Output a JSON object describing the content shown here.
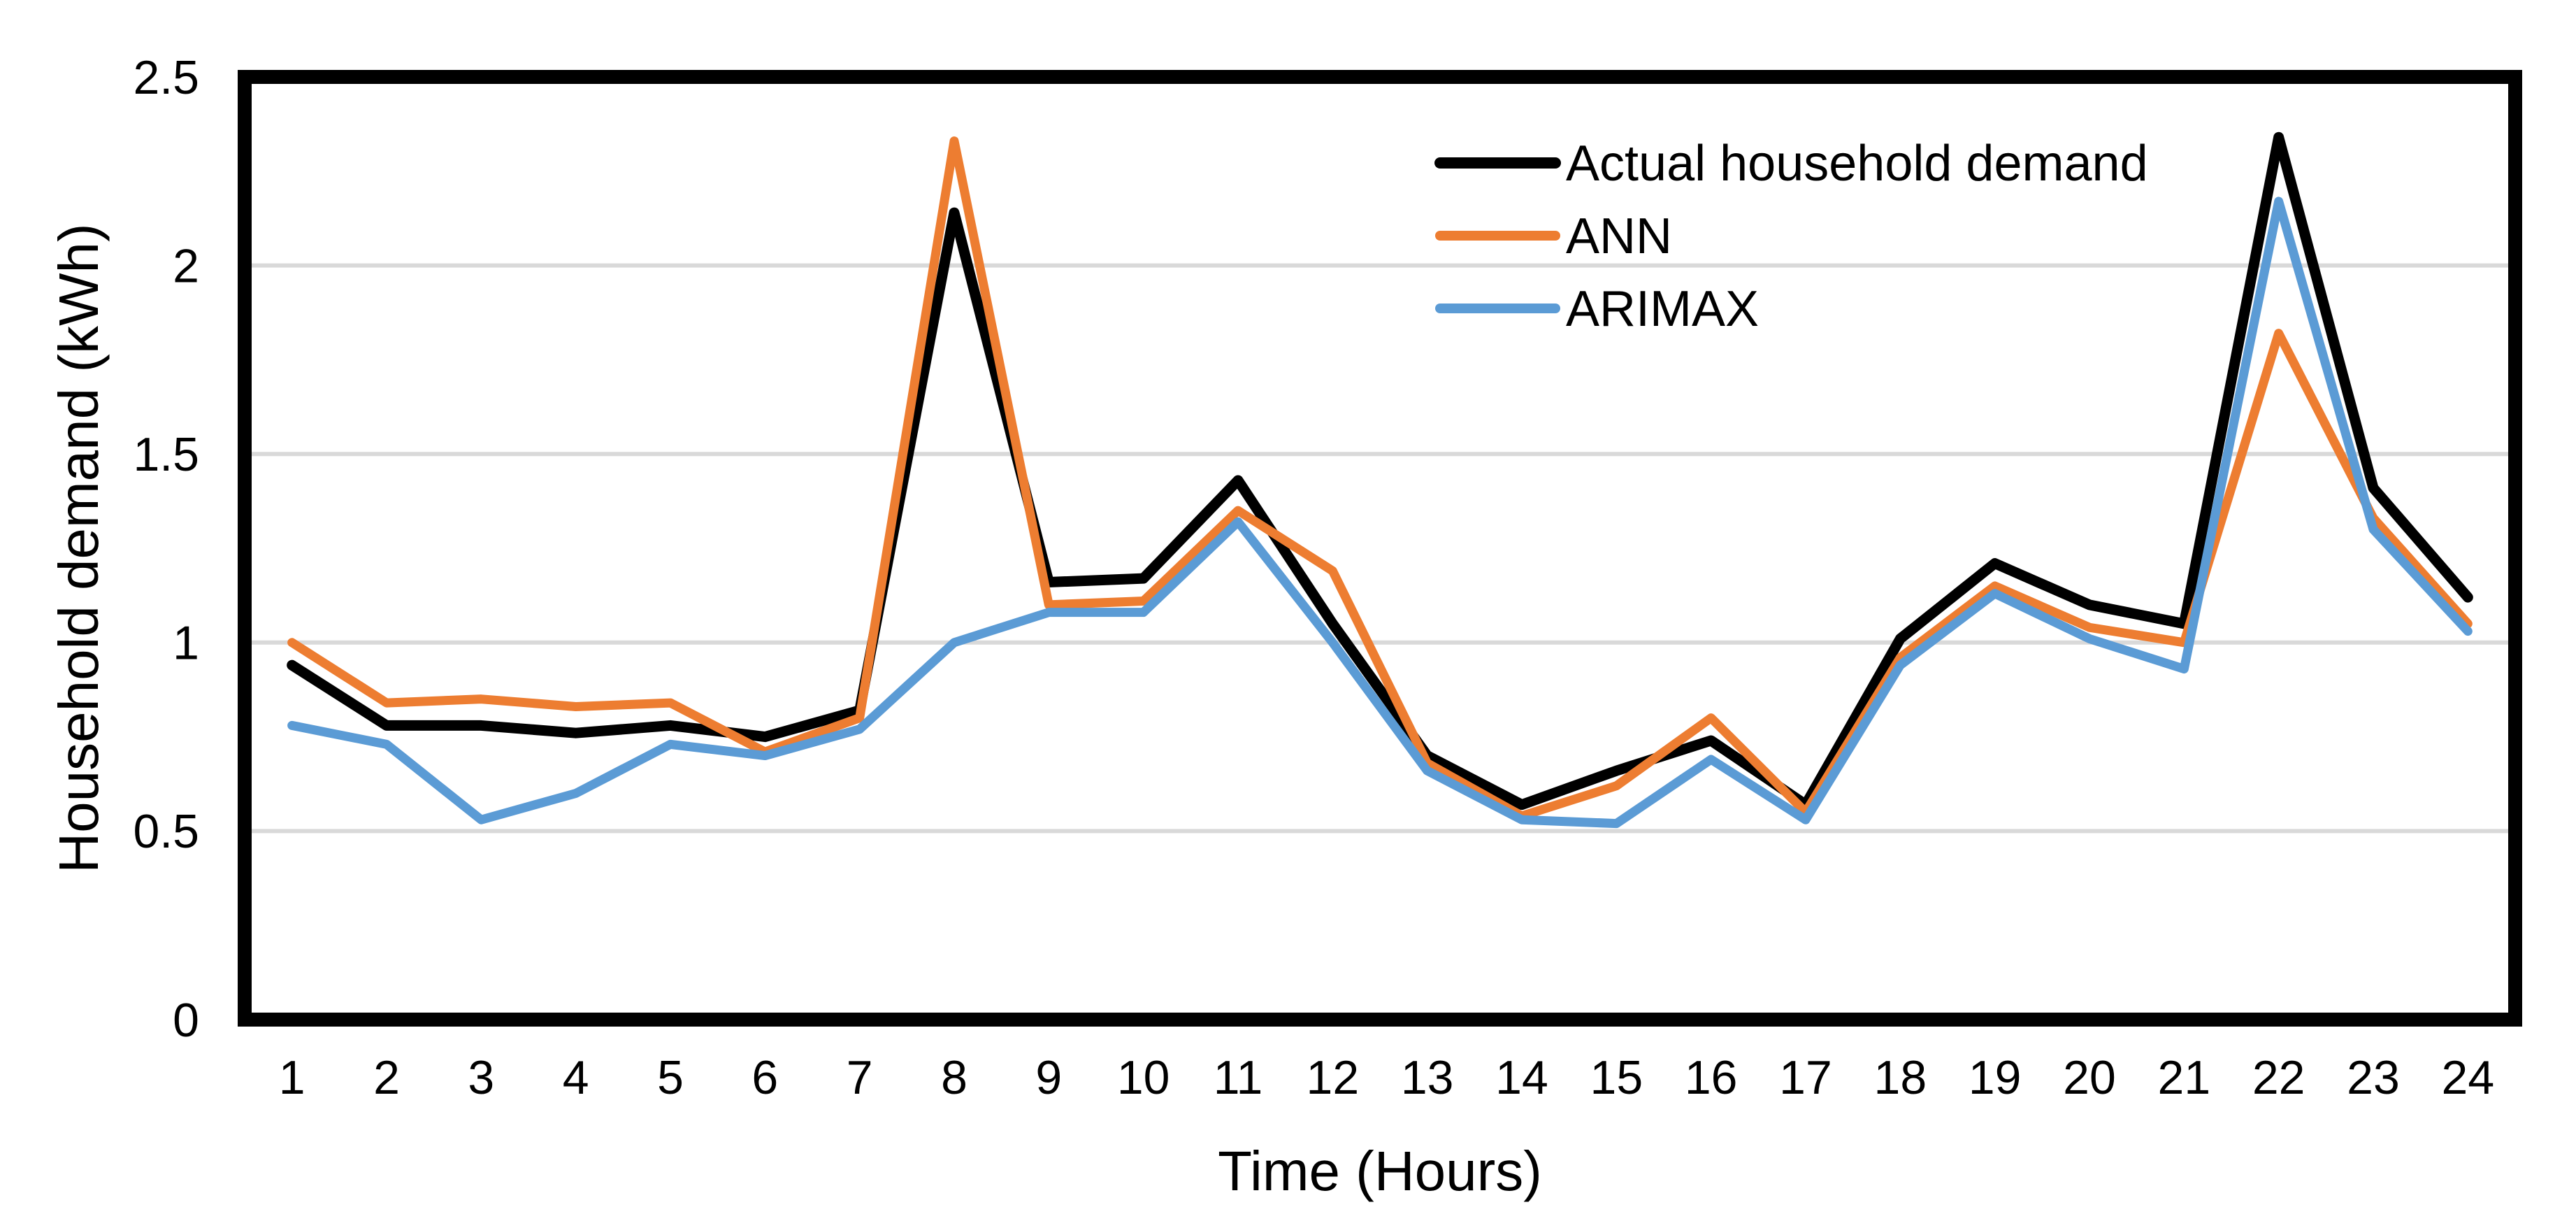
{
  "figure": {
    "background": "#ffffff",
    "frame_color": "#000000",
    "grid_color": "#d9d9d9",
    "text_color": "#000000"
  },
  "chart_data": {
    "type": "line",
    "title": "",
    "xlabel": "Time (Hours)",
    "ylabel": "Household demand (kWh)",
    "x": [
      1,
      2,
      3,
      4,
      5,
      6,
      7,
      8,
      9,
      10,
      11,
      12,
      13,
      14,
      15,
      16,
      17,
      18,
      19,
      20,
      21,
      22,
      23,
      24
    ],
    "ylim": [
      0,
      2.5
    ],
    "ytick_interval": 0.5,
    "ytick_labels": [
      "0",
      "0.5",
      "1",
      "1.5",
      "2",
      "2.5"
    ],
    "grid": "horizontal",
    "legend_position": "inside-top-right",
    "series": [
      {
        "name": "Actual household demand",
        "color": "#000000",
        "values": [
          0.94,
          0.78,
          0.78,
          0.76,
          0.78,
          0.75,
          0.82,
          2.14,
          1.16,
          1.17,
          1.43,
          1.05,
          0.7,
          0.57,
          0.66,
          0.74,
          0.57,
          1.01,
          1.21,
          1.1,
          1.05,
          2.34,
          1.41,
          1.12
        ]
      },
      {
        "name": "ANN",
        "color": "#ED7D31",
        "values": [
          1.0,
          0.84,
          0.85,
          0.83,
          0.84,
          0.71,
          0.8,
          2.33,
          1.1,
          1.11,
          1.35,
          1.19,
          0.68,
          0.54,
          0.62,
          0.8,
          0.55,
          0.96,
          1.15,
          1.04,
          1.0,
          1.82,
          1.33,
          1.05
        ]
      },
      {
        "name": "ARIMAX",
        "color": "#5B9BD5",
        "values": [
          0.78,
          0.73,
          0.53,
          0.6,
          0.73,
          0.7,
          0.77,
          1.0,
          1.08,
          1.08,
          1.32,
          1.0,
          0.66,
          0.53,
          0.52,
          0.69,
          0.53,
          0.94,
          1.13,
          1.01,
          0.93,
          2.17,
          1.3,
          1.03
        ]
      }
    ]
  }
}
